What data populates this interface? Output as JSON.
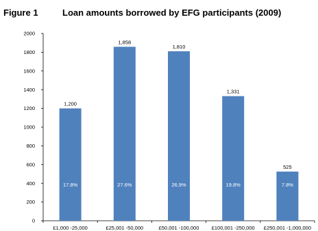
{
  "figure": {
    "label": "Figure 1",
    "title": "Loan amounts borrowed by EFG participants (2009)"
  },
  "chart_data": {
    "type": "bar",
    "categories": [
      "£1,000 -25,000",
      "£25,001 -50,000",
      "£50,001 -100,000",
      "£100,001 -250,000",
      "£250,001 -1,000,000"
    ],
    "series": [
      {
        "values": [
          1200,
          1858,
          1810,
          1331,
          525
        ],
        "value_labels": [
          "1,200",
          "1,858",
          "1,810",
          "1,331",
          "525"
        ],
        "share_labels": [
          "17.8%",
          "27.6%",
          "26.9%",
          "19.8%",
          "7.8%"
        ]
      }
    ],
    "ylim": [
      0,
      2000
    ],
    "yticks": [
      0,
      200,
      400,
      600,
      800,
      1000,
      1200,
      1400,
      1600,
      1800,
      2000
    ],
    "grid": false,
    "bar_color": "#4f81bd",
    "share_label_color": "#ffffff"
  }
}
